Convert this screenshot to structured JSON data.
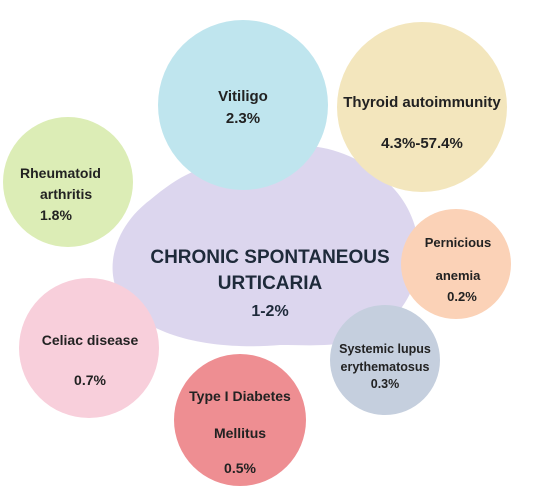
{
  "center": {
    "line1": "CHRONIC SPONTANEOUS",
    "line2": "URTICARIA",
    "value": "1-2%",
    "color": "#dcd6ee"
  },
  "conditions": {
    "vitiligo": {
      "label": "Vitiligo",
      "value": "2.3%",
      "color": "#bfe5ee"
    },
    "thyroid": {
      "label": "Thyroid autoimmunity",
      "value": "4.3%-57.4%",
      "color": "#f3e6bd"
    },
    "rheumatoid": {
      "line1": "Rheumatoid",
      "line2": "arthritis",
      "value": "1.8%",
      "color": "#dcedb6"
    },
    "pernicious": {
      "line1": "Pernicious",
      "line2": "anemia",
      "value": "0.2%",
      "color": "#fbd2b7"
    },
    "celiac": {
      "label": "Celiac disease",
      "value": "0.7%",
      "color": "#f8cfdb"
    },
    "sle": {
      "line1": "Systemic lupus",
      "line2": "erythematosus",
      "value": "0.3%",
      "color": "#c5cfde"
    },
    "diabetes": {
      "line1": "Type I Diabetes",
      "line2": "Mellitus",
      "value": "0.5%",
      "color": "#ee8e92"
    }
  }
}
